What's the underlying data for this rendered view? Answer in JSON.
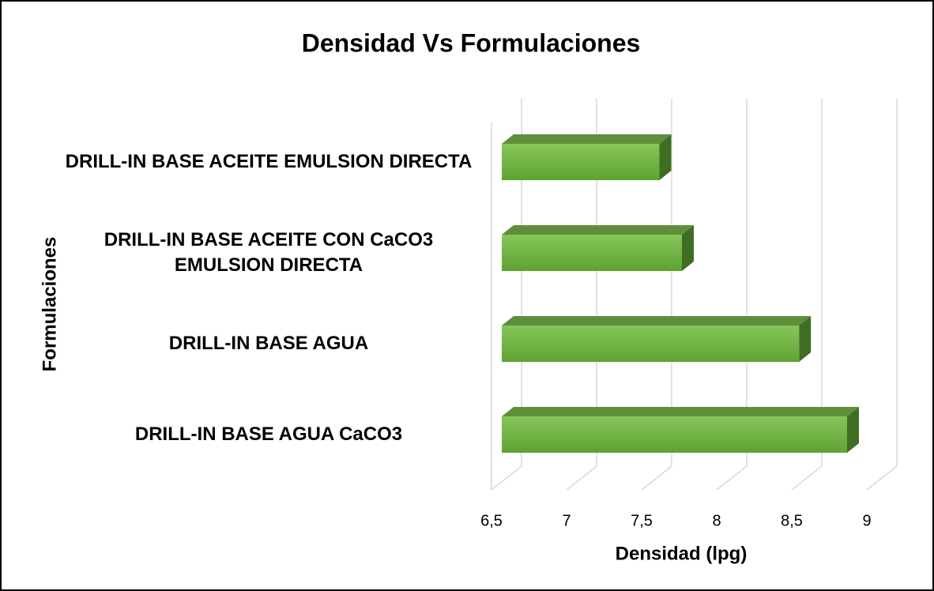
{
  "chart_data": {
    "type": "bar3d",
    "title": "Densidad Vs Formulaciones",
    "x_label": "Densidad (lpg)",
    "y_label": "Formulaciones",
    "categories": [
      "DRILL-IN BASE ACEITE EMULSION DIRECTA",
      "DRILL-IN BASE ACEITE CON CaCO3 EMULSION DIRECTA",
      "DRILL-IN BASE AGUA",
      "DRILL-IN BASE AGUA CaCO3"
    ],
    "values": [
      7.55,
      7.7,
      8.48,
      8.8
    ],
    "color": "#6db33f",
    "xlim": [
      6.5,
      9
    ],
    "xticks": [
      {
        "value": 6.5,
        "label": "6,5"
      },
      7,
      {
        "value": 7.5,
        "label": "7,5"
      },
      8,
      {
        "value": 8.5,
        "label": "8,5"
      },
      9
    ],
    "grid": true
  }
}
